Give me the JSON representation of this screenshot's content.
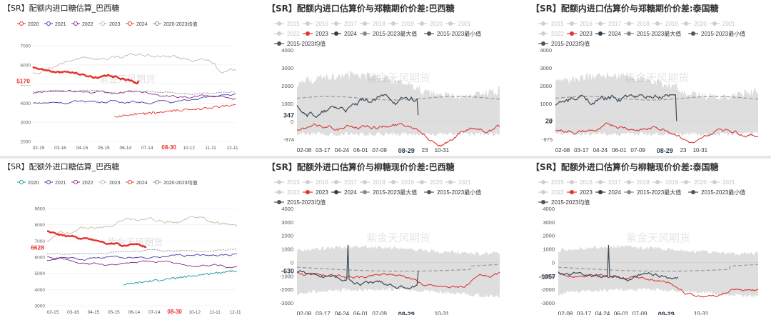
{
  "chart_data": [
    {
      "type": "line",
      "title": "【SR】配额内进口糖估算_巴西糖",
      "series": [
        {
          "name": "2020",
          "color": "#e8322b"
        },
        {
          "name": "2021",
          "color": "#4b3aa8"
        },
        {
          "name": "2022",
          "color": "#8a2a86"
        },
        {
          "name": "2023",
          "color": "#c9b9a6"
        },
        {
          "name": "2024",
          "color": "#e8322b"
        },
        {
          "name": "2020-2023均值",
          "color": "#888888"
        }
      ],
      "ylim": [
        2000,
        7000
      ],
      "yticks": [
        "7000",
        "6000",
        "5000",
        "4000",
        "3000",
        "2000"
      ],
      "xticks": [
        "02-15",
        "03-16",
        "04-15",
        "05-15",
        "06-14",
        "07-14",
        "10-12",
        "11-11",
        "12-11"
      ],
      "current_date": "08-30",
      "current_value": "5170",
      "current_value_num": 5170,
      "watermark": "紫金天风期货"
    },
    {
      "type": "area",
      "title": "【SR】配额内进口估算价与郑糖期价价差:巴西糖",
      "legend": [
        "2015",
        "2016",
        "2017",
        "2018",
        "2019",
        "2020",
        "2021",
        "2022",
        "2023",
        "2024",
        "2015-2023最大值",
        "2015-2023最小值",
        "2015-2023均值"
      ],
      "ylim": [
        -1000,
        4000
      ],
      "yticks": [
        "4000",
        "3000",
        "2000",
        "1000",
        "0"
      ],
      "bottom_label": "-974",
      "current_value": "347",
      "current_value_num": 347,
      "current_date": "08-29",
      "xticks": [
        "02-08",
        "03-17",
        "04-24",
        "06-01",
        "07-09",
        "23",
        "10-31"
      ],
      "watermark": "紫金天风期货"
    },
    {
      "type": "area",
      "title": "【SR】配额内进口估算价与郑糖期价价差:泰国糖",
      "legend": [
        "2015",
        "2016",
        "2017",
        "2018",
        "2019",
        "2020",
        "2021",
        "2022",
        "2023",
        "2024",
        "2015-2023最大值",
        "2015-2023最小值",
        "2015-2023均值"
      ],
      "ylim": [
        -1000,
        4000
      ],
      "yticks": [
        "4000",
        "3000",
        "2000",
        "1000",
        "0"
      ],
      "bottom_label": "-975",
      "current_value": "20",
      "current_value_num": 20,
      "current_date": "08-29",
      "xticks": [
        "02-08",
        "03-17",
        "04-24",
        "06-01",
        "07-09",
        "23",
        "10-31"
      ],
      "watermark": "紫金天风期货"
    },
    {
      "type": "line",
      "title": "【SR】配额外进口糖估算_巴西糖",
      "series": [
        {
          "name": "2020",
          "color": "#1a9a9a"
        },
        {
          "name": "2021",
          "color": "#4b3aa8"
        },
        {
          "name": "2022",
          "color": "#8a2a86"
        },
        {
          "name": "2023",
          "color": "#c9b9a6"
        },
        {
          "name": "2024",
          "color": "#e8322b"
        },
        {
          "name": "2020-2023均值",
          "color": "#888888"
        }
      ],
      "ylim": [
        3000,
        9000
      ],
      "yticks": [
        "9000",
        "8000",
        "7000",
        "6000",
        "5000",
        "4000",
        "3000"
      ],
      "xticks": [
        "02-15",
        "03-16",
        "04-15",
        "05-15",
        "06-14",
        "07-14",
        "10-12",
        "11-11",
        "12-11"
      ],
      "current_date": "08-30",
      "current_value": "6628",
      "current_value_num": 6628,
      "watermark": "紫金天风期货"
    },
    {
      "type": "area",
      "title": "【SR】配额外进口估算价与柳糖现价价差:巴西糖",
      "legend": [
        "2015",
        "2016",
        "2017",
        "2018",
        "2019",
        "2020",
        "2021",
        "2022",
        "2023",
        "2024",
        "2015-2023最大值",
        "2015-2023最小值",
        "2015-2023均值"
      ],
      "ylim": [
        -3000,
        4000
      ],
      "yticks": [
        "4000",
        "3000",
        "2000",
        "1000",
        "0",
        "-1000",
        "-2000",
        "-3000"
      ],
      "current_value": "-630",
      "current_value_num": -630,
      "current_date": "08-29",
      "xticks": [
        "02-08",
        "03-17",
        "04-24",
        "06-01",
        "07-09",
        "10-31"
      ],
      "watermark": "紫金天风期货"
    },
    {
      "type": "area",
      "title": "【SR】配额外进口估算价与柳糖现价价差:泰国糖",
      "legend": [
        "2015",
        "2016",
        "2017",
        "2018",
        "2019",
        "2020",
        "2021",
        "2022",
        "2023",
        "2024",
        "2015-2023最大值",
        "2015-2023最小值",
        "2015-2023均值"
      ],
      "ylim": [
        -3000,
        4000
      ],
      "yticks": [
        "4000",
        "3000",
        "2000",
        "1000",
        "0",
        "-1000",
        "-2000",
        "-3000"
      ],
      "current_value": "-1057",
      "current_value_num": -1057,
      "current_date": "08-29",
      "xticks": [
        "02-08",
        "03-17",
        "04-24",
        "06-01",
        "07-09",
        "10-31"
      ],
      "watermark": "紫金天风期货"
    }
  ]
}
